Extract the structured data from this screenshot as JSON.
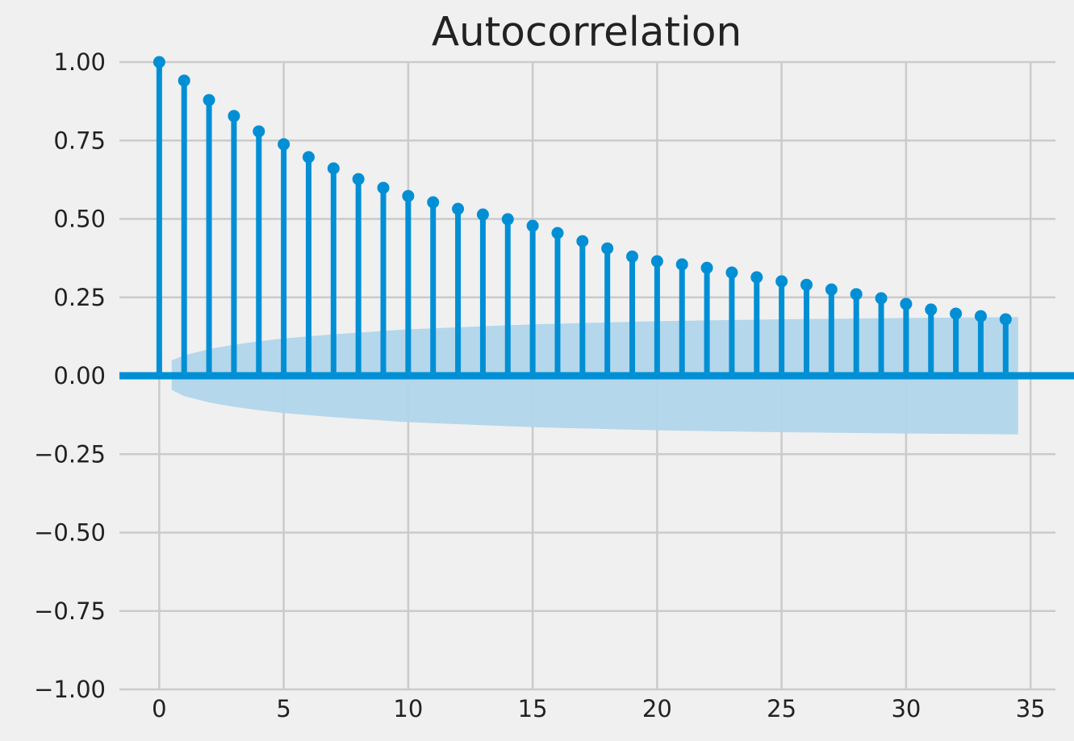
{
  "chart_data": {
    "type": "stem",
    "title": "Autocorrelation",
    "color": "#008fd5",
    "band_color": "#b0d5ea",
    "grid": true,
    "x": [
      0,
      1,
      2,
      3,
      4,
      5,
      6,
      7,
      8,
      9,
      10,
      11,
      12,
      13,
      14,
      15,
      16,
      17,
      18,
      19,
      20,
      21,
      22,
      23,
      24,
      25,
      26,
      27,
      28,
      29,
      30,
      31,
      32,
      33,
      34
    ],
    "values": [
      1.0,
      0.941,
      0.879,
      0.828,
      0.779,
      0.738,
      0.697,
      0.661,
      0.627,
      0.599,
      0.573,
      0.553,
      0.532,
      0.514,
      0.499,
      0.478,
      0.455,
      0.429,
      0.406,
      0.38,
      0.365,
      0.355,
      0.344,
      0.329,
      0.314,
      0.301,
      0.29,
      0.275,
      0.26,
      0.247,
      0.229,
      0.211,
      0.198,
      0.19,
      0.18
    ],
    "confidence_band": {
      "x": [
        0.5,
        1,
        2,
        3,
        4,
        5,
        7,
        10,
        15,
        20,
        25,
        30,
        34.5
      ],
      "upper": [
        0.049,
        0.065,
        0.085,
        0.099,
        0.11,
        0.119,
        0.132,
        0.148,
        0.164,
        0.174,
        0.18,
        0.184,
        0.187
      ],
      "lower": [
        -0.045,
        -0.065,
        -0.085,
        -0.099,
        -0.11,
        -0.119,
        -0.132,
        -0.148,
        -0.164,
        -0.174,
        -0.18,
        -0.184,
        -0.187
      ]
    },
    "xlim": [
      -1.6,
      36.0
    ],
    "ylim": [
      -1.0,
      1.0
    ],
    "xticks": [
      0,
      5,
      10,
      15,
      20,
      25,
      30,
      35
    ],
    "yticks": [
      {
        "value": -1.0,
        "label": "−1.00"
      },
      {
        "value": -0.75,
        "label": "−0.75"
      },
      {
        "value": -0.5,
        "label": "−0.50"
      },
      {
        "value": -0.25,
        "label": "−0.25"
      },
      {
        "value": 0,
        "label": "0.00"
      },
      {
        "value": 0.25,
        "label": "0.25"
      },
      {
        "value": 0.5,
        "label": "0.50"
      },
      {
        "value": 0.75,
        "label": "0.75"
      },
      {
        "value": 1.0,
        "label": "1.00"
      }
    ]
  }
}
